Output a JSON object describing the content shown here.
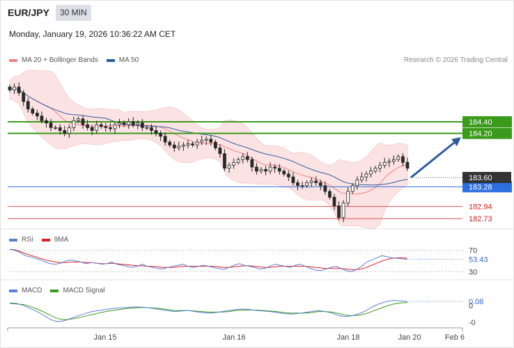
{
  "header": {
    "symbol": "EUR/JPY",
    "timeframe": "30 MIN",
    "timestamp": "Monday, January 19, 2026 10:36:22 AM CET",
    "copyright": "Research © 2026 Trading Central"
  },
  "legends": {
    "price": [
      {
        "label": "MA 20 + Bollinger Bands",
        "color": "#f08080"
      },
      {
        "label": "MA 50",
        "color": "#2e5a9c"
      }
    ],
    "rsi": [
      {
        "label": "RSI",
        "color": "#5b7fd6"
      },
      {
        "label": "9MA",
        "color": "#e02020"
      }
    ],
    "macd": [
      {
        "label": "MACD",
        "color": "#5b7fd6"
      },
      {
        "label": "MACD Signal",
        "color": "#3a9a1a"
      }
    ]
  },
  "chart_data": {
    "type": "candlestick",
    "x_ticks": [
      "Jan 15",
      "Jan 16",
      "Jan 18",
      "Jan 20",
      "Feb 6"
    ],
    "price_ylim": [
      182.6,
      185.3
    ],
    "candles_close": [
      184.95,
      185.0,
      184.9,
      184.75,
      184.62,
      184.55,
      184.5,
      184.42,
      184.38,
      184.3,
      184.3,
      184.25,
      184.2,
      184.3,
      184.42,
      184.45,
      184.35,
      184.3,
      184.25,
      184.35,
      184.32,
      184.3,
      184.28,
      184.35,
      184.38,
      184.35,
      184.4,
      184.35,
      184.38,
      184.3,
      184.3,
      184.25,
      184.2,
      184.15,
      184.05,
      184.0,
      183.95,
      183.98,
      184.0,
      184.02,
      184.0,
      184.05,
      184.08,
      184.1,
      184.05,
      183.95,
      183.85,
      183.6,
      183.65,
      183.7,
      183.75,
      183.8,
      183.75,
      183.62,
      183.55,
      183.58,
      183.55,
      183.62,
      183.6,
      183.55,
      183.5,
      183.45,
      183.35,
      183.3,
      183.3,
      183.35,
      183.38,
      183.35,
      183.3,
      183.2,
      183.1,
      182.95,
      182.75,
      183.0,
      183.2,
      183.3,
      183.4,
      183.45,
      183.5,
      183.55,
      183.6,
      183.65,
      183.7,
      183.72,
      183.75,
      183.8,
      183.7,
      183.6
    ],
    "current_price": "183.60",
    "levels": [
      {
        "value": "184.40",
        "type": "resistance",
        "color": "#3a9a1a"
      },
      {
        "value": "184.20",
        "type": "resistance",
        "color": "#3a9a1a"
      },
      {
        "value": "183.28",
        "type": "support",
        "color": "#2e6fe0"
      },
      {
        "value": "182.94",
        "type": "support",
        "color": "#e05050"
      },
      {
        "value": "182.73",
        "type": "support",
        "color": "#e05050"
      }
    ],
    "rsi": {
      "ylim": [
        20,
        80
      ],
      "levels": [
        "70",
        "30"
      ],
      "current": "53.43",
      "values": [
        72,
        70,
        66,
        60,
        58,
        55,
        52,
        48,
        45,
        44,
        46,
        50,
        52,
        50,
        48,
        45,
        47,
        46,
        44,
        45,
        48,
        44,
        42,
        40,
        38,
        40,
        44,
        40,
        38,
        36,
        35,
        38,
        40,
        42,
        44,
        40,
        38,
        40,
        42,
        40,
        38,
        36,
        34,
        38,
        42,
        45,
        42,
        40,
        38,
        35,
        36,
        40,
        44,
        42,
        40,
        38,
        42,
        44,
        40,
        36,
        33,
        32,
        35,
        38,
        40,
        36,
        32,
        30,
        34,
        40,
        48,
        52,
        56,
        60,
        58,
        56,
        55,
        54,
        53
      ],
      "ma": [
        72,
        71,
        68,
        64,
        61,
        58,
        55,
        52,
        50,
        48,
        47,
        47,
        48,
        48,
        48,
        47,
        47,
        46,
        45,
        45,
        46,
        45,
        44,
        43,
        42,
        41,
        41,
        40,
        40,
        39,
        38,
        38,
        38,
        39,
        40,
        40,
        40,
        40,
        40,
        40,
        40,
        39,
        38,
        38,
        39,
        40,
        41,
        41,
        40,
        39,
        38,
        38,
        39,
        40,
        40,
        40,
        40,
        40,
        40,
        39,
        38,
        37,
        36,
        36,
        36,
        36,
        35,
        34,
        34,
        35,
        38,
        42,
        46,
        50,
        53,
        55,
        56,
        56,
        55
      ]
    },
    "macd": {
      "ylim": [
        -0.4,
        0.15
      ],
      "current": "0.08",
      "tick_labels": [
        "0",
        "-0"
      ],
      "macd": [
        0.05,
        0.04,
        0.0,
        -0.06,
        -0.12,
        -0.2,
        -0.28,
        -0.32,
        -0.3,
        -0.25,
        -0.2,
        -0.16,
        -0.12,
        -0.1,
        -0.08,
        -0.06,
        -0.05,
        -0.04,
        -0.03,
        -0.03,
        -0.04,
        -0.06,
        -0.08,
        -0.1,
        -0.12,
        -0.11,
        -0.1,
        -0.12,
        -0.14,
        -0.15,
        -0.14,
        -0.12,
        -0.1,
        -0.08,
        -0.07,
        -0.08,
        -0.1,
        -0.11,
        -0.12,
        -0.14,
        -0.16,
        -0.17,
        -0.16,
        -0.14,
        -0.12,
        -0.1,
        -0.12,
        -0.15,
        -0.2,
        -0.22,
        -0.2,
        -0.16,
        -0.1,
        -0.02,
        0.04,
        0.08,
        0.1,
        0.09,
        0.08
      ],
      "signal": [
        0.04,
        0.03,
        0.02,
        -0.02,
        -0.07,
        -0.13,
        -0.2,
        -0.26,
        -0.28,
        -0.27,
        -0.24,
        -0.21,
        -0.18,
        -0.15,
        -0.12,
        -0.1,
        -0.08,
        -0.06,
        -0.05,
        -0.04,
        -0.04,
        -0.05,
        -0.06,
        -0.08,
        -0.1,
        -0.1,
        -0.1,
        -0.11,
        -0.12,
        -0.13,
        -0.13,
        -0.13,
        -0.12,
        -0.1,
        -0.09,
        -0.09,
        -0.09,
        -0.1,
        -0.11,
        -0.12,
        -0.14,
        -0.15,
        -0.15,
        -0.15,
        -0.14,
        -0.12,
        -0.12,
        -0.13,
        -0.16,
        -0.19,
        -0.2,
        -0.19,
        -0.16,
        -0.11,
        -0.06,
        -0.01,
        0.03,
        0.05,
        0.06
      ]
    }
  }
}
